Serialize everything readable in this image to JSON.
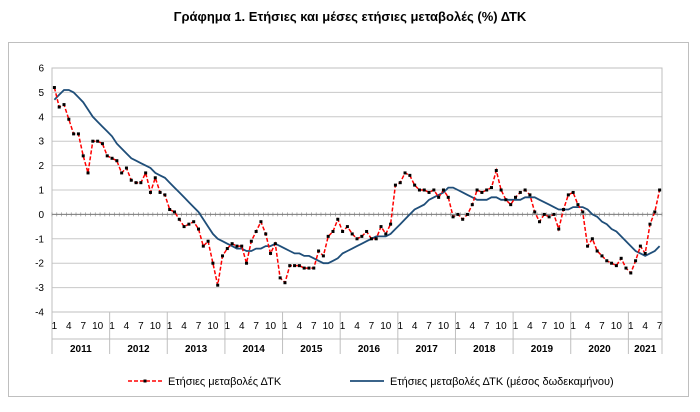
{
  "chart_data": {
    "type": "line",
    "title": "Γράφημα 1. Ετήσιες και μέσες ετήσιες μεταβολές (%) ΔΤΚ",
    "ylim": [
      -4,
      6
    ],
    "yticks": [
      6,
      5,
      4,
      3,
      2,
      1,
      0,
      -1,
      -2,
      -3,
      -4
    ],
    "grid": true,
    "legend_position": "bottom",
    "month_labels": [
      "1",
      "4",
      "7",
      "10"
    ],
    "years": [
      "2011",
      "2012",
      "2013",
      "2014",
      "2015",
      "2016",
      "2017",
      "2018",
      "2019",
      "2020",
      "2021"
    ],
    "series": [
      {
        "name": "Ετήσιες μεταβολές ΔΤΚ",
        "color": "#ff0000",
        "style": "dashed-with-markers",
        "values": [
          5.2,
          4.4,
          4.5,
          3.9,
          3.3,
          3.3,
          2.4,
          1.7,
          3.0,
          3.0,
          2.9,
          2.4,
          2.3,
          2.2,
          1.7,
          1.9,
          1.4,
          1.3,
          1.3,
          1.7,
          0.9,
          1.5,
          0.9,
          0.8,
          0.2,
          0.1,
          -0.2,
          -0.5,
          -0.4,
          -0.3,
          -0.6,
          -1.3,
          -1.1,
          -2.0,
          -2.9,
          -1.7,
          -1.4,
          -1.2,
          -1.3,
          -1.3,
          -2.0,
          -1.1,
          -0.7,
          -0.3,
          -0.8,
          -1.6,
          -1.2,
          -2.6,
          -2.8,
          -2.1,
          -2.1,
          -2.1,
          -2.2,
          -2.2,
          -2.2,
          -1.5,
          -1.7,
          -0.9,
          -0.7,
          -0.2,
          -0.7,
          -0.5,
          -0.8,
          -1.0,
          -0.9,
          -0.7,
          -1.0,
          -1.0,
          -0.5,
          -0.8,
          -0.4,
          1.2,
          1.3,
          1.7,
          1.6,
          1.2,
          1.0,
          1.0,
          0.9,
          1.0,
          0.7,
          1.0,
          0.7,
          -0.1,
          0.0,
          -0.2,
          0.0,
          0.4,
          1.0,
          0.9,
          1.0,
          1.1,
          1.8,
          1.0,
          0.6,
          0.4,
          0.7,
          0.9,
          1.0,
          0.8,
          0.1,
          -0.3,
          0.0,
          -0.1,
          0.0,
          -0.6,
          0.2,
          0.8,
          0.9,
          0.4,
          0.1,
          -1.3,
          -1.0,
          -1.5,
          -1.7,
          -1.9,
          -2.0,
          -2.1,
          -1.8,
          -2.2,
          -2.4,
          -1.9,
          -1.3,
          -1.6,
          -0.4,
          0.1,
          1.0
        ]
      },
      {
        "name": "Ετήσιες μεταβολές ΔΤΚ (μέσος δωδεκαμήνου)",
        "color": "#1f4e79",
        "style": "solid",
        "values": [
          4.7,
          4.9,
          5.1,
          5.1,
          5.0,
          4.8,
          4.6,
          4.3,
          4.0,
          3.8,
          3.6,
          3.4,
          3.2,
          2.9,
          2.7,
          2.5,
          2.3,
          2.2,
          2.1,
          2.0,
          1.9,
          1.7,
          1.6,
          1.5,
          1.3,
          1.1,
          0.9,
          0.7,
          0.5,
          0.3,
          0.1,
          -0.2,
          -0.5,
          -0.8,
          -1.0,
          -1.1,
          -1.2,
          -1.3,
          -1.4,
          -1.4,
          -1.5,
          -1.5,
          -1.4,
          -1.4,
          -1.3,
          -1.3,
          -1.2,
          -1.3,
          -1.4,
          -1.5,
          -1.6,
          -1.6,
          -1.7,
          -1.7,
          -1.8,
          -1.9,
          -2.0,
          -2.0,
          -1.9,
          -1.8,
          -1.6,
          -1.5,
          -1.4,
          -1.3,
          -1.2,
          -1.1,
          -1.0,
          -0.9,
          -0.9,
          -0.9,
          -0.8,
          -0.6,
          -0.4,
          -0.2,
          0.0,
          0.2,
          0.3,
          0.4,
          0.6,
          0.7,
          0.8,
          0.9,
          1.1,
          1.1,
          1.0,
          0.9,
          0.8,
          0.7,
          0.6,
          0.6,
          0.6,
          0.7,
          0.7,
          0.6,
          0.6,
          0.6,
          0.6,
          0.6,
          0.7,
          0.7,
          0.7,
          0.6,
          0.5,
          0.4,
          0.3,
          0.2,
          0.2,
          0.2,
          0.3,
          0.3,
          0.3,
          0.2,
          0.0,
          -0.1,
          -0.3,
          -0.4,
          -0.6,
          -0.7,
          -0.9,
          -1.1,
          -1.3,
          -1.5,
          -1.6,
          -1.7,
          -1.6,
          -1.5,
          -1.3
        ]
      }
    ]
  }
}
